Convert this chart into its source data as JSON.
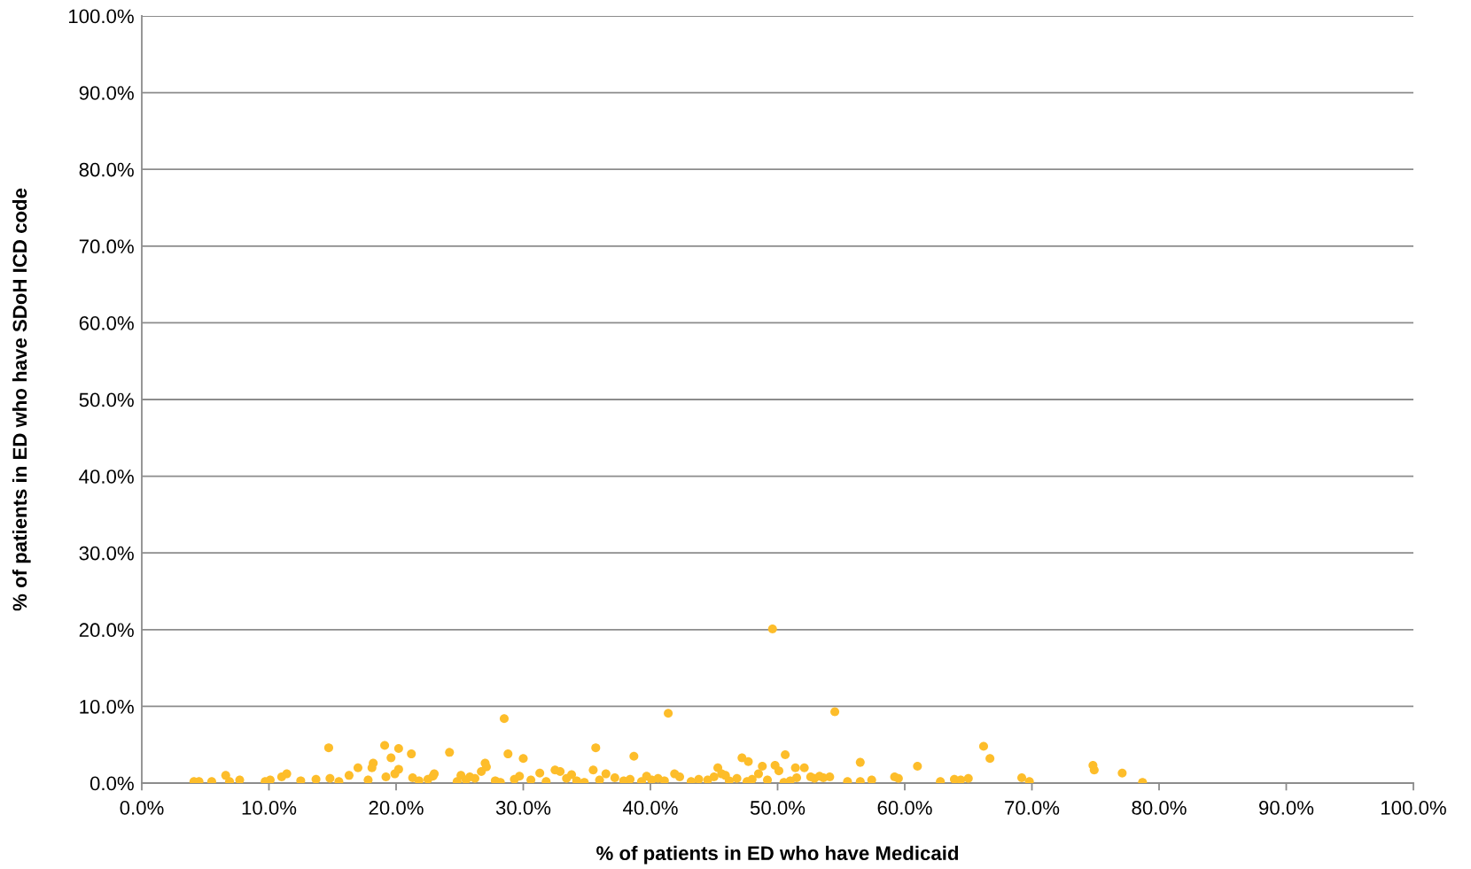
{
  "chart_data": {
    "type": "scatter",
    "xlabel": "% of patients in ED who have Medicaid",
    "ylabel": "% of patients in ED who have SDoH ICD code",
    "marker": "circle",
    "grid": "y",
    "xlim": [
      0,
      100
    ],
    "ylim": [
      0,
      100
    ],
    "xticks": [
      {
        "value": 0,
        "label": "0.0%"
      },
      {
        "value": 10,
        "label": "10.0%"
      },
      {
        "value": 20,
        "label": "20.0%"
      },
      {
        "value": 30,
        "label": "30.0%"
      },
      {
        "value": 40,
        "label": "40.0%"
      },
      {
        "value": 50,
        "label": "50.0%"
      },
      {
        "value": 60,
        "label": "60.0%"
      },
      {
        "value": 70,
        "label": "70.0%"
      },
      {
        "value": 80,
        "label": "80.0%"
      },
      {
        "value": 90,
        "label": "90.0%"
      },
      {
        "value": 100,
        "label": "100.0%"
      }
    ],
    "yticks": [
      {
        "value": 0,
        "label": "0.0%"
      },
      {
        "value": 10,
        "label": "10.0%"
      },
      {
        "value": 20,
        "label": "20.0%"
      },
      {
        "value": 30,
        "label": "30.0%"
      },
      {
        "value": 40,
        "label": "40.0%"
      },
      {
        "value": 50,
        "label": "50.0%"
      },
      {
        "value": 60,
        "label": "60.0%"
      },
      {
        "value": 70,
        "label": "70.0%"
      },
      {
        "value": 80,
        "label": "80.0%"
      },
      {
        "value": 90,
        "label": "90.0%"
      },
      {
        "value": 100,
        "label": "100.0%"
      }
    ],
    "series": [
      {
        "color": "#fdbd2a",
        "x": [
          49.6,
          28.5,
          41.4,
          54.5,
          14.7,
          19.1,
          20.2,
          21.2,
          19.6,
          24.2,
          28.8,
          30.0,
          35.7,
          38.7,
          47.2,
          47.7,
          50.6,
          56.5,
          61.0,
          66.2,
          66.7,
          74.8,
          74.9,
          77.1,
          78.7,
          69.2,
          69.8,
          63.9,
          64.4,
          65.0,
          62.8,
          59.2,
          59.5,
          57.4,
          56.5,
          55.5,
          54.1,
          53.6,
          52.6,
          52.1,
          51.4,
          51.5,
          49.8,
          50.1,
          48.8,
          48.5,
          45.3,
          45.6,
          45.0,
          41.9,
          42.3,
          36.5,
          35.5,
          32.5,
          32.9,
          31.3,
          27.0,
          27.1,
          26.7,
          25.8,
          23.0,
          21.3,
          19.9,
          20.2,
          19.2,
          18.2,
          18.1,
          17.0,
          16.3,
          14.8,
          13.7,
          11.4,
          11.0,
          10.1,
          9.7,
          7.7,
          6.6,
          6.9,
          5.5,
          4.1,
          4.5,
          12.5,
          15.5,
          17.8,
          21.8,
          22.5,
          24.8,
          25.5,
          26.2,
          27.8,
          28.2,
          29.3,
          30.6,
          31.8,
          33.4,
          34.2,
          34.8,
          36.0,
          37.2,
          37.9,
          38.4,
          39.3,
          40.1,
          40.6,
          41.1,
          43.2,
          43.8,
          44.5,
          46.2,
          46.8,
          47.6,
          48.0,
          49.2,
          50.5,
          51.0,
          52.9,
          22.9,
          25.1,
          29.7,
          33.8,
          39.7,
          45.9,
          53.3
        ],
        "values": [
          20.1,
          8.4,
          9.1,
          9.3,
          4.6,
          4.9,
          4.5,
          3.8,
          3.3,
          4.0,
          3.8,
          3.2,
          4.6,
          3.5,
          3.3,
          2.8,
          3.7,
          2.7,
          2.2,
          4.8,
          3.2,
          2.3,
          1.7,
          1.3,
          0.1,
          0.7,
          0.2,
          0.5,
          0.4,
          0.6,
          0.2,
          0.8,
          0.6,
          0.4,
          0.2,
          0.2,
          0.8,
          0.7,
          0.8,
          2.0,
          2.0,
          0.7,
          2.3,
          1.6,
          2.2,
          1.2,
          2.0,
          1.2,
          0.8,
          1.2,
          0.8,
          1.2,
          1.7,
          1.7,
          1.5,
          1.3,
          2.6,
          2.1,
          1.5,
          0.8,
          1.2,
          0.7,
          1.2,
          1.8,
          0.8,
          2.6,
          2.0,
          2.0,
          1.0,
          0.6,
          0.5,
          1.2,
          0.8,
          0.4,
          0.2,
          0.4,
          1.0,
          0.2,
          0.2,
          0.2,
          0.2,
          0.3,
          0.2,
          0.4,
          0.3,
          0.5,
          0.2,
          0.4,
          0.6,
          0.3,
          0.1,
          0.5,
          0.4,
          0.2,
          0.6,
          0.3,
          0.1,
          0.4,
          0.7,
          0.3,
          0.5,
          0.2,
          0.4,
          0.6,
          0.3,
          0.2,
          0.5,
          0.4,
          0.3,
          0.6,
          0.2,
          0.5,
          0.4,
          0.1,
          0.3,
          0.6,
          0.9,
          1.0,
          0.9,
          1.1,
          0.9,
          1.0,
          0.9
        ]
      }
    ]
  }
}
